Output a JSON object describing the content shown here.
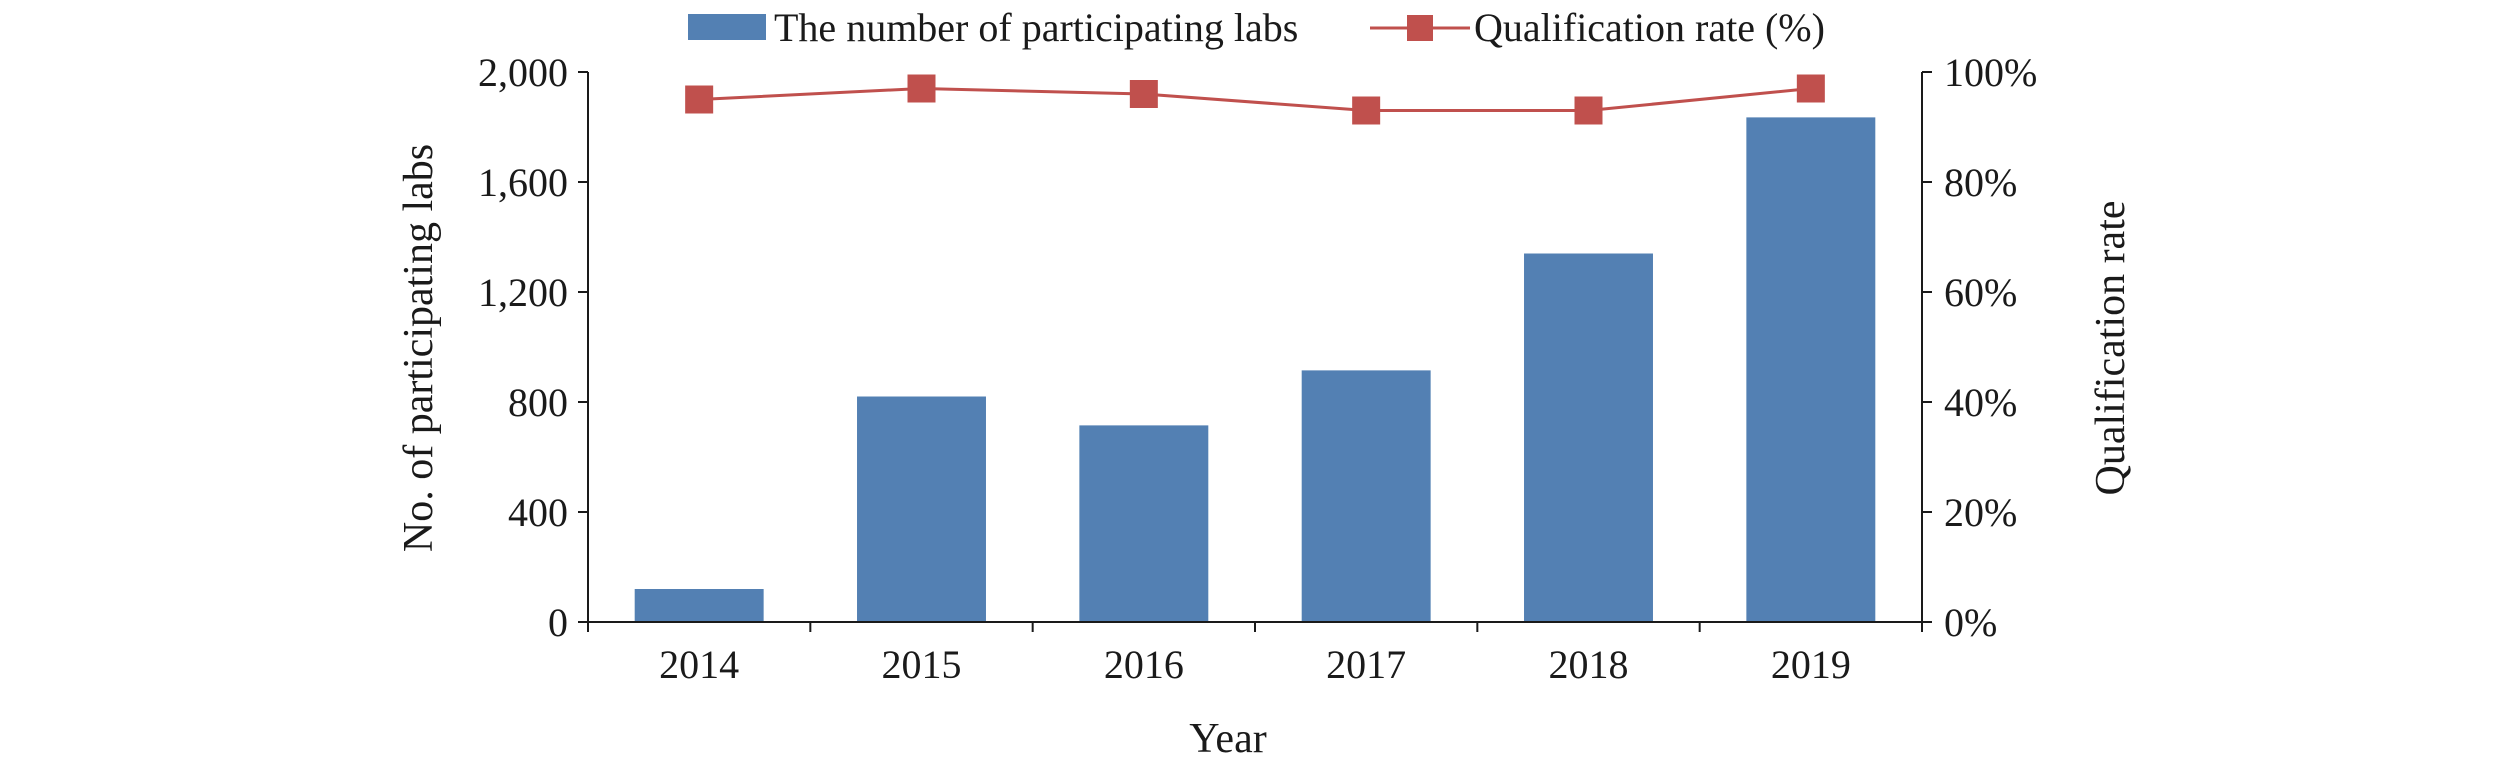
{
  "chart_data": {
    "type": "bar",
    "categories": [
      "2014",
      "2015",
      "2016",
      "2017",
      "2018",
      "2019"
    ],
    "series": [
      {
        "name": "The number of participating labs",
        "type": "bar",
        "axis": "left",
        "color": "#5380B3",
        "values": [
          120,
          820,
          715,
          915,
          1340,
          1835
        ]
      },
      {
        "name": "Qualification rate (%)",
        "type": "line",
        "axis": "right",
        "color": "#C0504D",
        "values": [
          95,
          97,
          96,
          93,
          93,
          97
        ]
      }
    ],
    "xlabel": "Year",
    "ylabel": "No. of participating labs",
    "y2label": "Qualification rate",
    "ylim": [
      0,
      2000
    ],
    "y2lim": [
      0,
      100
    ],
    "yticks": [
      "0",
      "400",
      "800",
      "1,200",
      "1,600",
      "2,000"
    ],
    "y2ticks": [
      "0%",
      "20%",
      "40%",
      "60%",
      "80%",
      "100%"
    ],
    "grid": false,
    "legend_position": "top"
  }
}
